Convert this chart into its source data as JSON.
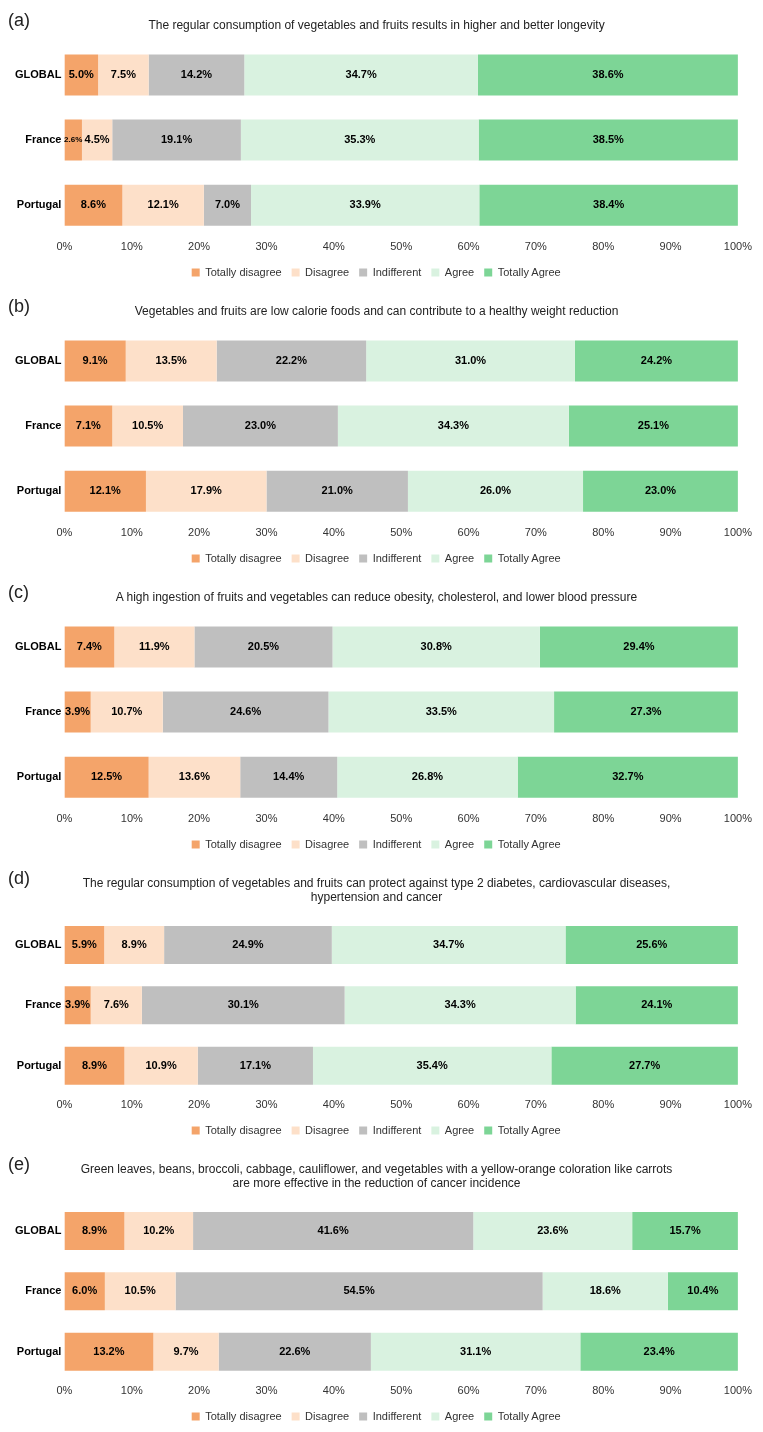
{
  "chart_data": [
    {
      "type": "bar",
      "orientation": "horizontal",
      "stacked": true,
      "title": "The regular consumption of vegetables and fruits results in higher and better longevity",
      "annotations": [
        "(a)"
      ],
      "categories": [
        "GLOBAL",
        "France",
        "Portugal"
      ],
      "xlim": [
        0,
        100
      ],
      "xticks": [
        {
          "value": 0,
          "label": "0%"
        },
        {
          "value": 10,
          "label": "10%"
        },
        {
          "value": 20,
          "label": "20%"
        },
        {
          "value": 30,
          "label": "30%"
        },
        {
          "value": 40,
          "label": "40%"
        },
        {
          "value": 50,
          "label": "50%"
        },
        {
          "value": 60,
          "label": "60%"
        },
        {
          "value": 70,
          "label": "70%"
        },
        {
          "value": 80,
          "label": "80%"
        },
        {
          "value": 90,
          "label": "90%"
        },
        {
          "value": 100,
          "label": "100%"
        }
      ],
      "legend": "bottom",
      "grid": false,
      "series": [
        {
          "name": "Totally disagree",
          "color": "#f4a46a",
          "values": [
            5.0,
            2.6,
            8.6
          ],
          "value_labels": [
            "5.0%",
            "2.6%",
            "8.6%"
          ]
        },
        {
          "name": "Disagree",
          "color": "#fde0c9",
          "values": [
            7.5,
            4.5,
            12.1
          ],
          "value_labels": [
            "7.5%",
            "4.5%",
            "12.1%"
          ]
        },
        {
          "name": "Indifferent",
          "color": "#bfbfbf",
          "values": [
            14.2,
            19.1,
            7.0
          ],
          "value_labels": [
            "14.2%",
            "19.1%",
            "7.0%"
          ]
        },
        {
          "name": "Agree",
          "color": "#d9f2e0",
          "values": [
            34.7,
            35.3,
            33.9
          ],
          "value_labels": [
            "34.7%",
            "35.3%",
            "33.9%"
          ]
        },
        {
          "name": "Totally Agree",
          "color": "#7dd596",
          "values": [
            38.6,
            38.5,
            38.4
          ],
          "value_labels": [
            "38.6%",
            "38.5%",
            "38.4%"
          ]
        }
      ]
    },
    {
      "type": "bar",
      "orientation": "horizontal",
      "stacked": true,
      "title": "Vegetables and fruits are low calorie foods and can contribute to a healthy weight reduction",
      "annotations": [
        "(b)"
      ],
      "categories": [
        "GLOBAL",
        "France",
        "Portugal"
      ],
      "xlim": [
        0,
        100
      ],
      "xticks": [
        {
          "value": 0,
          "label": "0%"
        },
        {
          "value": 10,
          "label": "10%"
        },
        {
          "value": 20,
          "label": "20%"
        },
        {
          "value": 30,
          "label": "30%"
        },
        {
          "value": 40,
          "label": "40%"
        },
        {
          "value": 50,
          "label": "50%"
        },
        {
          "value": 60,
          "label": "60%"
        },
        {
          "value": 70,
          "label": "70%"
        },
        {
          "value": 80,
          "label": "80%"
        },
        {
          "value": 90,
          "label": "90%"
        },
        {
          "value": 100,
          "label": "100%"
        }
      ],
      "legend": "bottom",
      "grid": false,
      "series": [
        {
          "name": "Totally disagree",
          "color": "#f4a46a",
          "values": [
            9.1,
            7.1,
            12.1
          ],
          "value_labels": [
            "9.1%",
            "7.1%",
            "12.1%"
          ]
        },
        {
          "name": "Disagree",
          "color": "#fde0c9",
          "values": [
            13.5,
            10.5,
            17.9
          ],
          "value_labels": [
            "13.5%",
            "10.5%",
            "17.9%"
          ]
        },
        {
          "name": "Indifferent",
          "color": "#bfbfbf",
          "values": [
            22.2,
            23.0,
            21.0
          ],
          "value_labels": [
            "22.2%",
            "23.0%",
            "21.0%"
          ]
        },
        {
          "name": "Agree",
          "color": "#d9f2e0",
          "values": [
            31.0,
            34.3,
            26.0
          ],
          "value_labels": [
            "31.0%",
            "34.3%",
            "26.0%"
          ]
        },
        {
          "name": "Totally Agree",
          "color": "#7dd596",
          "values": [
            24.2,
            25.1,
            23.0
          ],
          "value_labels": [
            "24.2%",
            "25.1%",
            "23.0%"
          ]
        }
      ]
    },
    {
      "type": "bar",
      "orientation": "horizontal",
      "stacked": true,
      "title": "A high ingestion of fruits and vegetables can reduce obesity, cholesterol, and lower blood pressure",
      "annotations": [
        "(c)"
      ],
      "categories": [
        "GLOBAL",
        "France",
        "Portugal"
      ],
      "xlim": [
        0,
        100
      ],
      "xticks": [
        {
          "value": 0,
          "label": "0%"
        },
        {
          "value": 10,
          "label": "10%"
        },
        {
          "value": 20,
          "label": "20%"
        },
        {
          "value": 30,
          "label": "30%"
        },
        {
          "value": 40,
          "label": "40%"
        },
        {
          "value": 50,
          "label": "50%"
        },
        {
          "value": 60,
          "label": "60%"
        },
        {
          "value": 70,
          "label": "70%"
        },
        {
          "value": 80,
          "label": "80%"
        },
        {
          "value": 90,
          "label": "90%"
        },
        {
          "value": 100,
          "label": "100%"
        }
      ],
      "legend": "bottom",
      "grid": false,
      "series": [
        {
          "name": "Totally disagree",
          "color": "#f4a46a",
          "values": [
            7.4,
            3.9,
            12.5
          ],
          "value_labels": [
            "7.4%",
            "3.9%",
            "12.5%"
          ]
        },
        {
          "name": "Disagree",
          "color": "#fde0c9",
          "values": [
            11.9,
            10.7,
            13.6
          ],
          "value_labels": [
            "11.9%",
            "10.7%",
            "13.6%"
          ]
        },
        {
          "name": "Indifferent",
          "color": "#bfbfbf",
          "values": [
            20.5,
            24.6,
            14.4
          ],
          "value_labels": [
            "20.5%",
            "24.6%",
            "14.4%"
          ]
        },
        {
          "name": "Agree",
          "color": "#d9f2e0",
          "values": [
            30.8,
            33.5,
            26.8
          ],
          "value_labels": [
            "30.8%",
            "33.5%",
            "26.8%"
          ]
        },
        {
          "name": "Totally Agree",
          "color": "#7dd596",
          "values": [
            29.4,
            27.3,
            32.7
          ],
          "value_labels": [
            "29.4%",
            "27.3%",
            "32.7%"
          ]
        }
      ]
    },
    {
      "type": "bar",
      "orientation": "horizontal",
      "stacked": true,
      "title": "The regular consumption of vegetables and fruits can protect against type 2 diabetes, cardiovascular diseases, hypertension and cancer",
      "annotations": [
        "(d)"
      ],
      "categories": [
        "GLOBAL",
        "France",
        "Portugal"
      ],
      "xlim": [
        0,
        100
      ],
      "xticks": [
        {
          "value": 0,
          "label": "0%"
        },
        {
          "value": 10,
          "label": "10%"
        },
        {
          "value": 20,
          "label": "20%"
        },
        {
          "value": 30,
          "label": "30%"
        },
        {
          "value": 40,
          "label": "40%"
        },
        {
          "value": 50,
          "label": "50%"
        },
        {
          "value": 60,
          "label": "60%"
        },
        {
          "value": 70,
          "label": "70%"
        },
        {
          "value": 80,
          "label": "80%"
        },
        {
          "value": 90,
          "label": "90%"
        },
        {
          "value": 100,
          "label": "100%"
        }
      ],
      "legend": "bottom",
      "grid": false,
      "series": [
        {
          "name": "Totally disagree",
          "color": "#f4a46a",
          "values": [
            5.9,
            3.9,
            8.9
          ],
          "value_labels": [
            "5.9%",
            "3.9%",
            "8.9%"
          ]
        },
        {
          "name": "Disagree",
          "color": "#fde0c9",
          "values": [
            8.9,
            7.6,
            10.9
          ],
          "value_labels": [
            "8.9%",
            "7.6%",
            "10.9%"
          ]
        },
        {
          "name": "Indifferent",
          "color": "#bfbfbf",
          "values": [
            24.9,
            30.1,
            17.1
          ],
          "value_labels": [
            "24.9%",
            "30.1%",
            "17.1%"
          ]
        },
        {
          "name": "Agree",
          "color": "#d9f2e0",
          "values": [
            34.7,
            34.3,
            35.4
          ],
          "value_labels": [
            "34.7%",
            "34.3%",
            "35.4%"
          ]
        },
        {
          "name": "Totally Agree",
          "color": "#7dd596",
          "values": [
            25.6,
            24.1,
            27.7
          ],
          "value_labels": [
            "25.6%",
            "24.1%",
            "27.7%"
          ]
        }
      ]
    },
    {
      "type": "bar",
      "orientation": "horizontal",
      "stacked": true,
      "title": "Green leaves, beans, broccoli, cabbage, cauliflower, and vegetables with a yellow-orange coloration like carrots are more effective in the reduction of cancer incidence",
      "annotations": [
        "(e)"
      ],
      "categories": [
        "GLOBAL",
        "France",
        "Portugal"
      ],
      "xlim": [
        0,
        100
      ],
      "xticks": [
        {
          "value": 0,
          "label": "0%"
        },
        {
          "value": 10,
          "label": "10%"
        },
        {
          "value": 20,
          "label": "20%"
        },
        {
          "value": 30,
          "label": "30%"
        },
        {
          "value": 40,
          "label": "40%"
        },
        {
          "value": 50,
          "label": "50%"
        },
        {
          "value": 60,
          "label": "60%"
        },
        {
          "value": 70,
          "label": "70%"
        },
        {
          "value": 80,
          "label": "80%"
        },
        {
          "value": 90,
          "label": "90%"
        },
        {
          "value": 100,
          "label": "100%"
        }
      ],
      "legend": "bottom",
      "grid": false,
      "series": [
        {
          "name": "Totally disagree",
          "color": "#f4a46a",
          "values": [
            8.9,
            6.0,
            13.2
          ],
          "value_labels": [
            "8.9%",
            "6.0%",
            "13.2%"
          ]
        },
        {
          "name": "Disagree",
          "color": "#fde0c9",
          "values": [
            10.2,
            10.5,
            9.7
          ],
          "value_labels": [
            "10.2%",
            "10.5%",
            "9.7%"
          ]
        },
        {
          "name": "Indifferent",
          "color": "#bfbfbf",
          "values": [
            41.6,
            54.5,
            22.6
          ],
          "value_labels": [
            "41.6%",
            "54.5%",
            "22.6%"
          ]
        },
        {
          "name": "Agree",
          "color": "#d9f2e0",
          "values": [
            23.6,
            18.6,
            31.1
          ],
          "value_labels": [
            "23.6%",
            "18.6%",
            "31.1%"
          ]
        },
        {
          "name": "Totally Agree",
          "color": "#7dd596",
          "values": [
            15.7,
            10.4,
            23.4
          ],
          "value_labels": [
            "15.7%",
            "10.4%",
            "23.4%"
          ]
        }
      ]
    }
  ]
}
